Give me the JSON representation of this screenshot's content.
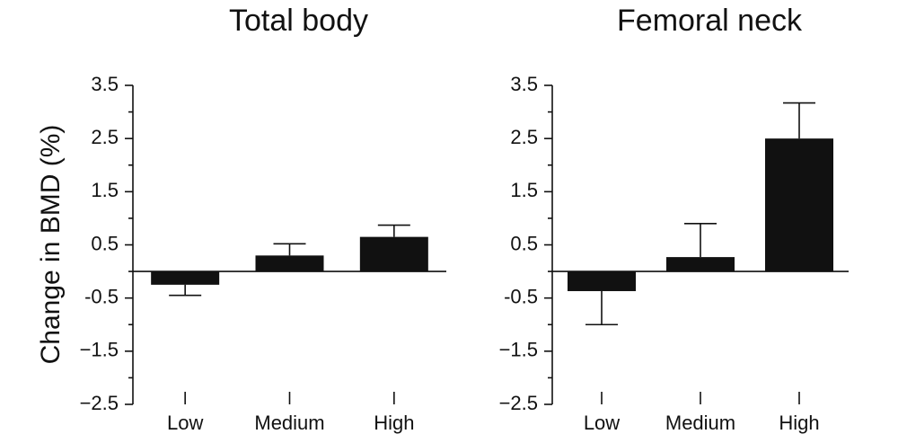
{
  "chart_data": [
    {
      "type": "bar",
      "title": "Total body",
      "y_label": "Change in BMD (%)",
      "categories": [
        "Low",
        "Medium",
        "High"
      ],
      "values": [
        -0.25,
        0.3,
        0.65
      ],
      "errors": [
        0.2,
        0.22,
        0.22
      ],
      "color": "#111111",
      "ylim": [
        -2.5,
        3.5
      ],
      "yticks": [
        3.5,
        2.5,
        1.5,
        0.5,
        -0.5,
        {
          "value": -1.5,
          "label": "−1.5"
        },
        {
          "value": -2.5,
          "label": "−2.5"
        }
      ],
      "minor_yticks": [
        3,
        2,
        1,
        0,
        -1,
        -2
      ]
    },
    {
      "type": "bar",
      "title": "Femoral neck",
      "categories": [
        "Low",
        "Medium",
        "High"
      ],
      "values": [
        -0.37,
        0.27,
        2.5
      ],
      "errors": [
        0.63,
        0.63,
        0.67
      ],
      "color": "#111111",
      "ylim": [
        -2.5,
        3.5
      ],
      "yticks": [
        3.5,
        2.5,
        1.5,
        0.5,
        -0.5,
        {
          "value": -1.5,
          "label": "−1.5"
        },
        {
          "value": -2.5,
          "label": "−2.5"
        }
      ],
      "minor_yticks": [
        3,
        2,
        1,
        0,
        -1,
        -2
      ]
    }
  ]
}
